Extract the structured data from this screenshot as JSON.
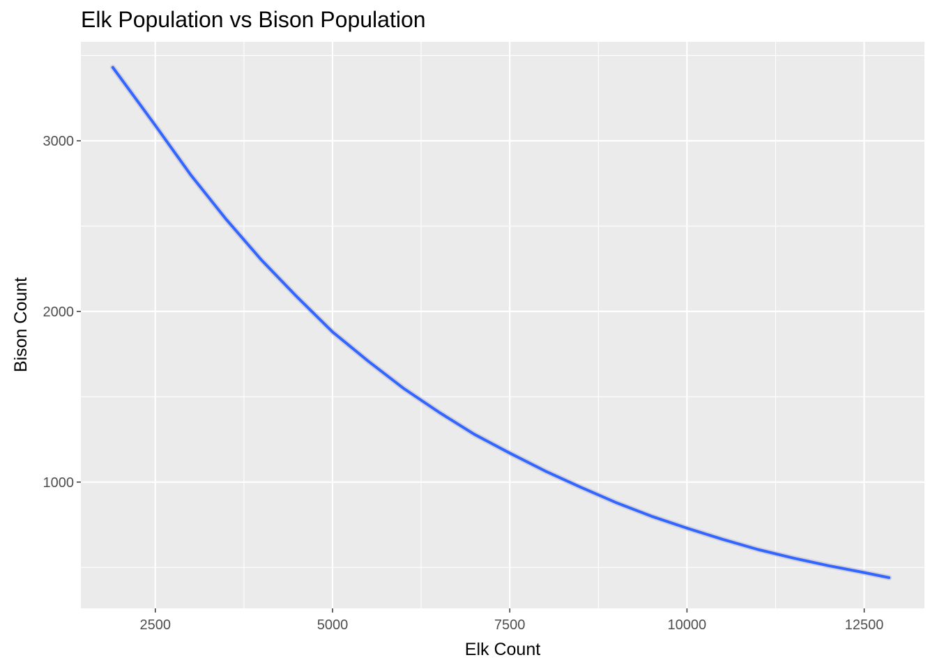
{
  "chart_data": {
    "type": "line",
    "title": "Elk Population vs Bison Population",
    "xlabel": "Elk Count",
    "ylabel": "Bison Count",
    "xlim": [
      1450,
      13350
    ],
    "ylim": [
      260,
      3580
    ],
    "x_ticks": [
      2500,
      5000,
      7500,
      10000,
      12500
    ],
    "x_tick_labels": [
      "2500",
      "5000",
      "7500",
      "10000",
      "12500"
    ],
    "y_ticks": [
      1000,
      2000,
      3000
    ],
    "y_tick_labels": [
      "1000",
      "2000",
      "3000"
    ],
    "grid": true,
    "legend": "none",
    "colors": {
      "panel": "#ebebeb",
      "grid": "#ffffff",
      "line": "#3366ff",
      "ribbon": "#c8c8d8"
    },
    "series": [
      {
        "x": [
          1900,
          2500,
          3000,
          3500,
          4000,
          4500,
          5000,
          5500,
          6000,
          6500,
          7000,
          7500,
          8000,
          8500,
          9000,
          9500,
          10000,
          10500,
          11000,
          11500,
          12000,
          12500,
          12850
        ],
        "values": [
          3430,
          3090,
          2800,
          2540,
          2300,
          2085,
          1880,
          1710,
          1550,
          1410,
          1280,
          1170,
          1065,
          970,
          880,
          800,
          730,
          665,
          605,
          555,
          510,
          470,
          440
        ]
      }
    ]
  }
}
